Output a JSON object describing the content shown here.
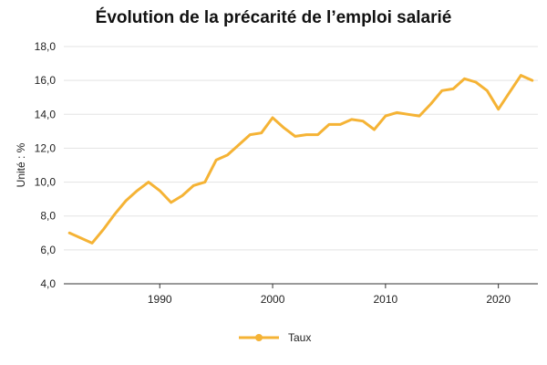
{
  "chart_data": {
    "type": "line",
    "title": "Évolution de la précarité de l’emploi salarié",
    "xlabel": "",
    "ylabel": "Unité : %",
    "x": [
      1982,
      1984,
      1985,
      1986,
      1987,
      1988,
      1989,
      1990,
      1991,
      1992,
      1993,
      1994,
      1995,
      1996,
      1997,
      1998,
      1999,
      2000,
      2001,
      2002,
      2003,
      2004,
      2005,
      2006,
      2007,
      2008,
      2009,
      2010,
      2011,
      2012,
      2013,
      2014,
      2015,
      2016,
      2017,
      2018,
      2019,
      2020,
      2021,
      2022,
      2023
    ],
    "series": [
      {
        "name": "Taux",
        "color": "#f5b335",
        "values": [
          7.0,
          6.4,
          7.2,
          8.1,
          8.9,
          9.5,
          10.0,
          9.5,
          8.8,
          9.2,
          9.8,
          10.0,
          11.3,
          11.6,
          12.2,
          12.8,
          12.9,
          13.8,
          13.2,
          12.7,
          12.8,
          12.8,
          13.4,
          13.4,
          13.7,
          13.6,
          13.1,
          13.9,
          14.1,
          14.0,
          13.9,
          14.6,
          15.4,
          15.5,
          16.1,
          15.9,
          15.4,
          14.3,
          15.3,
          16.3,
          16.0
        ]
      }
    ],
    "xlim": [
      1981.5,
      2023.5
    ],
    "ylim": [
      4.0,
      18.0
    ],
    "x_ticks": [
      "1990",
      "2000",
      "2010",
      "2020"
    ],
    "y_ticks": [
      "4,0",
      "6,0",
      "8,0",
      "10,0",
      "12,0",
      "14,0",
      "16,0",
      "18,0"
    ],
    "grid": true,
    "legend_position": "bottom-center"
  }
}
